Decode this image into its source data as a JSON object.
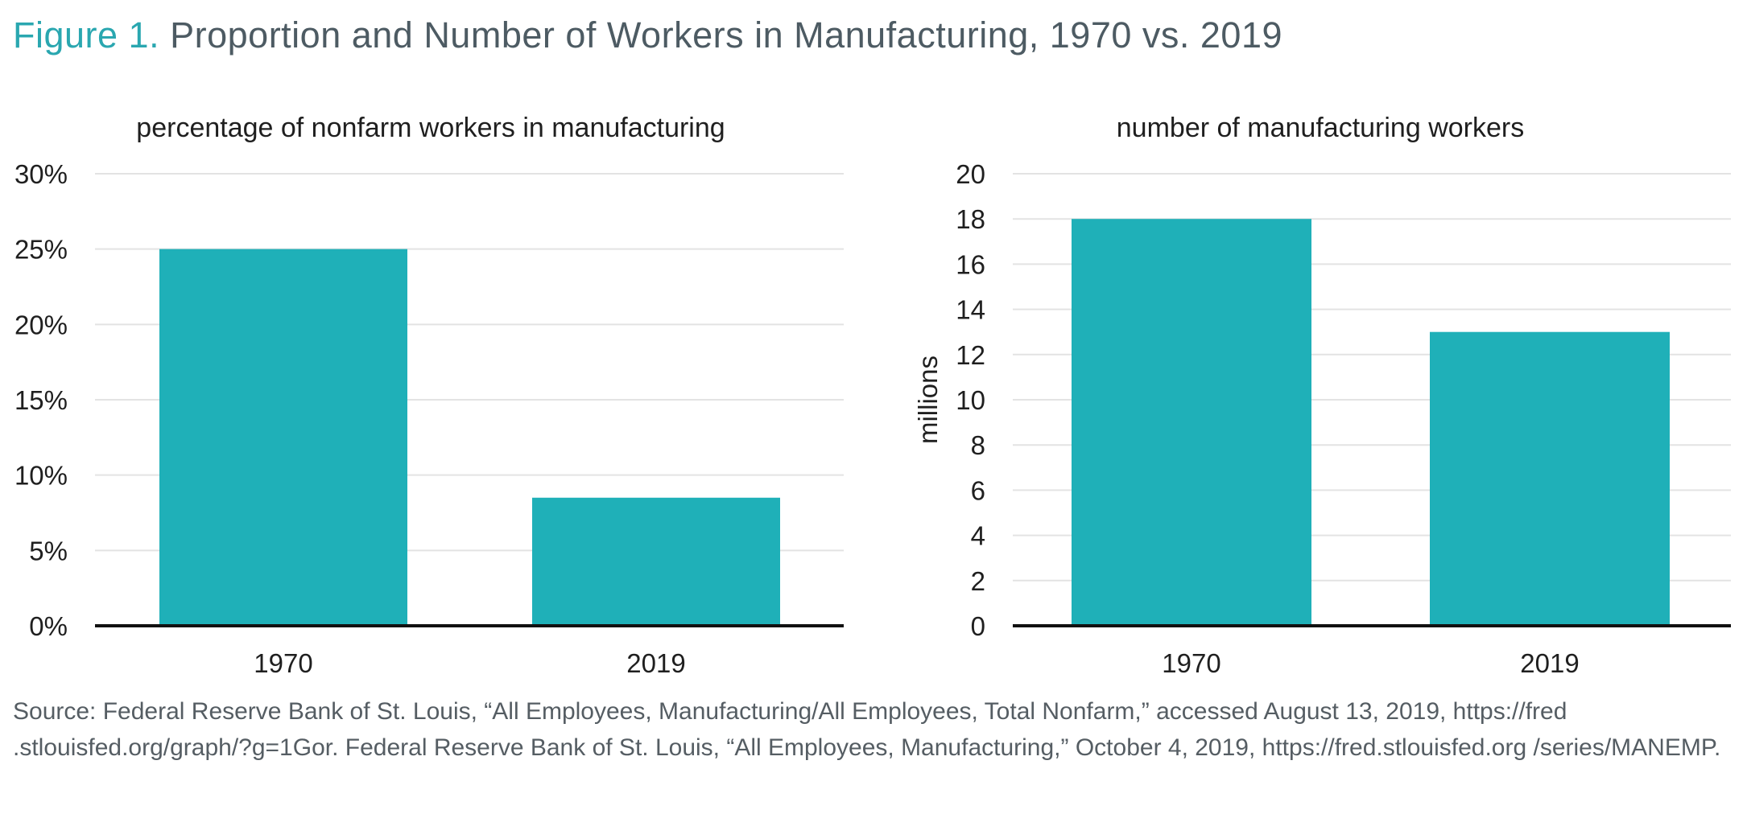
{
  "figure": {
    "label": "Figure 1.",
    "title": "Proportion and Number of Workers in Manufacturing, 1970 vs. 2019"
  },
  "colors": {
    "bar": "#1fb0b8",
    "gridline": "#e3e3e3",
    "axis": "#111111",
    "title_label": "#2aa7b0",
    "title_text": "#4d5b63"
  },
  "chart_data": [
    {
      "type": "bar",
      "title": "percentage of nonfarm workers in manufacturing",
      "xlabel": "",
      "ylabel": "",
      "categories": [
        "1970",
        "2019"
      ],
      "values": [
        25.0,
        8.5
      ],
      "ylim": [
        0,
        30
      ],
      "yticks": [
        0,
        5,
        10,
        15,
        20,
        25,
        30
      ],
      "ytick_labels": [
        "0%",
        "5%",
        "10%",
        "15%",
        "20%",
        "25%",
        "30%"
      ],
      "grid": true,
      "legend": "none"
    },
    {
      "type": "bar",
      "title": "number of manufacturing workers",
      "xlabel": "",
      "ylabel": "millions",
      "categories": [
        "1970",
        "2019"
      ],
      "values": [
        18.0,
        13.0
      ],
      "ylim": [
        0,
        20
      ],
      "yticks": [
        0,
        2,
        4,
        6,
        8,
        10,
        12,
        14,
        16,
        18,
        20
      ],
      "ytick_labels": [
        "0",
        "2",
        "4",
        "6",
        "8",
        "10",
        "12",
        "14",
        "16",
        "18",
        "20"
      ],
      "grid": true,
      "legend": "none"
    }
  ],
  "source": "Source: Federal Reserve Bank of St. Louis, “All Employees, Manufacturing/All Employees, Total Nonfarm,” accessed August 13, 2019, https://fred .stlouisfed.org/graph/?g=1Gor. Federal Reserve Bank of St. Louis, “All Employees, Manufacturing,” October 4, 2019, https://fred.stlouisfed.org /series/MANEMP."
}
